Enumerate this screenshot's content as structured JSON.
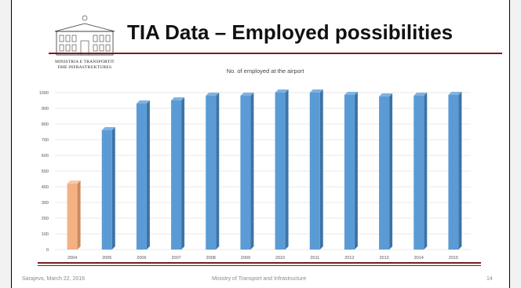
{
  "slide": {
    "title": "TIA Data – Employed possibilities",
    "logo_text_line1": "MINISTRIA E TRANSPORTIT",
    "logo_text_line2": "DHE INFRASTRUKTURES",
    "footer_left": "Sarajevo, March 22, 2016",
    "footer_center": "Ministry of Transport and Infrastructure",
    "page_number": "14",
    "accent_color": "#7a1e1e"
  },
  "chart_data": {
    "type": "bar",
    "title": "No. of employed at the airport",
    "categories": [
      "2004",
      "2005",
      "2006",
      "2007",
      "2008",
      "2009",
      "2010",
      "2011",
      "2012",
      "2013",
      "2014",
      "2015"
    ],
    "values": [
      420,
      760,
      930,
      950,
      980,
      980,
      1000,
      1000,
      985,
      975,
      980,
      985
    ],
    "ylim": [
      0,
      1000
    ],
    "yticks": [
      0,
      100,
      200,
      300,
      400,
      500,
      600,
      700,
      800,
      900,
      1000
    ],
    "grid": true,
    "colors": {
      "default": "#5b9bd5",
      "highlight": "#f4b183",
      "highlight_index": 0
    }
  }
}
